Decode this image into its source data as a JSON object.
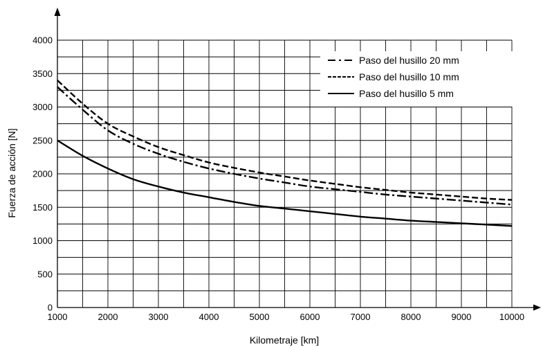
{
  "chart_data": {
    "type": "line",
    "title": "",
    "xlabel": "Kilometraje [km]",
    "ylabel": "Fuerza de acción [N]",
    "xlim": [
      1000,
      10000
    ],
    "ylim": [
      0,
      4000
    ],
    "x_ticks": [
      {
        "value": 1000,
        "label": "1000"
      },
      {
        "value": 2000,
        "label": "2000"
      },
      {
        "value": 3000,
        "label": "3000"
      },
      {
        "value": 4000,
        "label": "4000"
      },
      {
        "value": 5000,
        "label": "5000"
      },
      {
        "value": 6000,
        "label": "6000"
      },
      {
        "value": 7000,
        "label": "7000"
      },
      {
        "value": 8000,
        "label": "8000"
      },
      {
        "value": 9000,
        "label": "9000"
      },
      {
        "value": 10000,
        "label": "10000"
      }
    ],
    "y_ticks": [
      {
        "value": 0,
        "label": "0"
      },
      {
        "value": 500,
        "label": "500"
      },
      {
        "value": 1000,
        "label": "1000"
      },
      {
        "value": 1500,
        "label": "1500"
      },
      {
        "value": 2000,
        "label": "2000"
      },
      {
        "value": 2500,
        "label": "2500"
      },
      {
        "value": 3000,
        "label": "3000"
      },
      {
        "value": 3500,
        "label": "3500"
      },
      {
        "value": 4000,
        "label": "4000"
      }
    ],
    "x_minor_step": 500,
    "y_minor_step": 250,
    "grid": true,
    "legend_position": "top-right",
    "series": [
      {
        "name": "Paso del husillo 20 mm",
        "style": "dash-dot",
        "points": [
          [
            1000,
            3300
          ],
          [
            1500,
            2960
          ],
          [
            2000,
            2650
          ],
          [
            2500,
            2450
          ],
          [
            3000,
            2300
          ],
          [
            3500,
            2180
          ],
          [
            4000,
            2080
          ],
          [
            4500,
            2000
          ],
          [
            5000,
            1930
          ],
          [
            5500,
            1870
          ],
          [
            6000,
            1810
          ],
          [
            6500,
            1770
          ],
          [
            7000,
            1730
          ],
          [
            7500,
            1690
          ],
          [
            8000,
            1660
          ],
          [
            8500,
            1630
          ],
          [
            9000,
            1600
          ],
          [
            9500,
            1570
          ],
          [
            10000,
            1540
          ]
        ]
      },
      {
        "name": "Paso del husillo 10 mm",
        "style": "dashed",
        "points": [
          [
            1000,
            3400
          ],
          [
            1500,
            3050
          ],
          [
            2000,
            2750
          ],
          [
            2500,
            2560
          ],
          [
            3000,
            2400
          ],
          [
            3500,
            2280
          ],
          [
            4000,
            2170
          ],
          [
            4500,
            2090
          ],
          [
            5000,
            2020
          ],
          [
            5500,
            1960
          ],
          [
            6000,
            1900
          ],
          [
            6500,
            1850
          ],
          [
            7000,
            1800
          ],
          [
            7500,
            1760
          ],
          [
            8000,
            1720
          ],
          [
            8500,
            1690
          ],
          [
            9000,
            1660
          ],
          [
            9500,
            1630
          ],
          [
            10000,
            1610
          ]
        ]
      },
      {
        "name": "Paso del husillo 5 mm",
        "style": "solid",
        "points": [
          [
            1000,
            2500
          ],
          [
            1500,
            2270
          ],
          [
            2000,
            2080
          ],
          [
            2500,
            1920
          ],
          [
            3000,
            1810
          ],
          [
            3500,
            1720
          ],
          [
            4000,
            1650
          ],
          [
            4500,
            1580
          ],
          [
            5000,
            1520
          ],
          [
            5500,
            1480
          ],
          [
            6000,
            1440
          ],
          [
            6500,
            1400
          ],
          [
            7000,
            1360
          ],
          [
            7500,
            1330
          ],
          [
            8000,
            1300
          ],
          [
            8500,
            1280
          ],
          [
            9000,
            1260
          ],
          [
            9500,
            1240
          ],
          [
            10000,
            1220
          ]
        ]
      }
    ],
    "colors": {
      "line": "#000000",
      "grid": "#000000",
      "background": "#ffffff"
    }
  }
}
